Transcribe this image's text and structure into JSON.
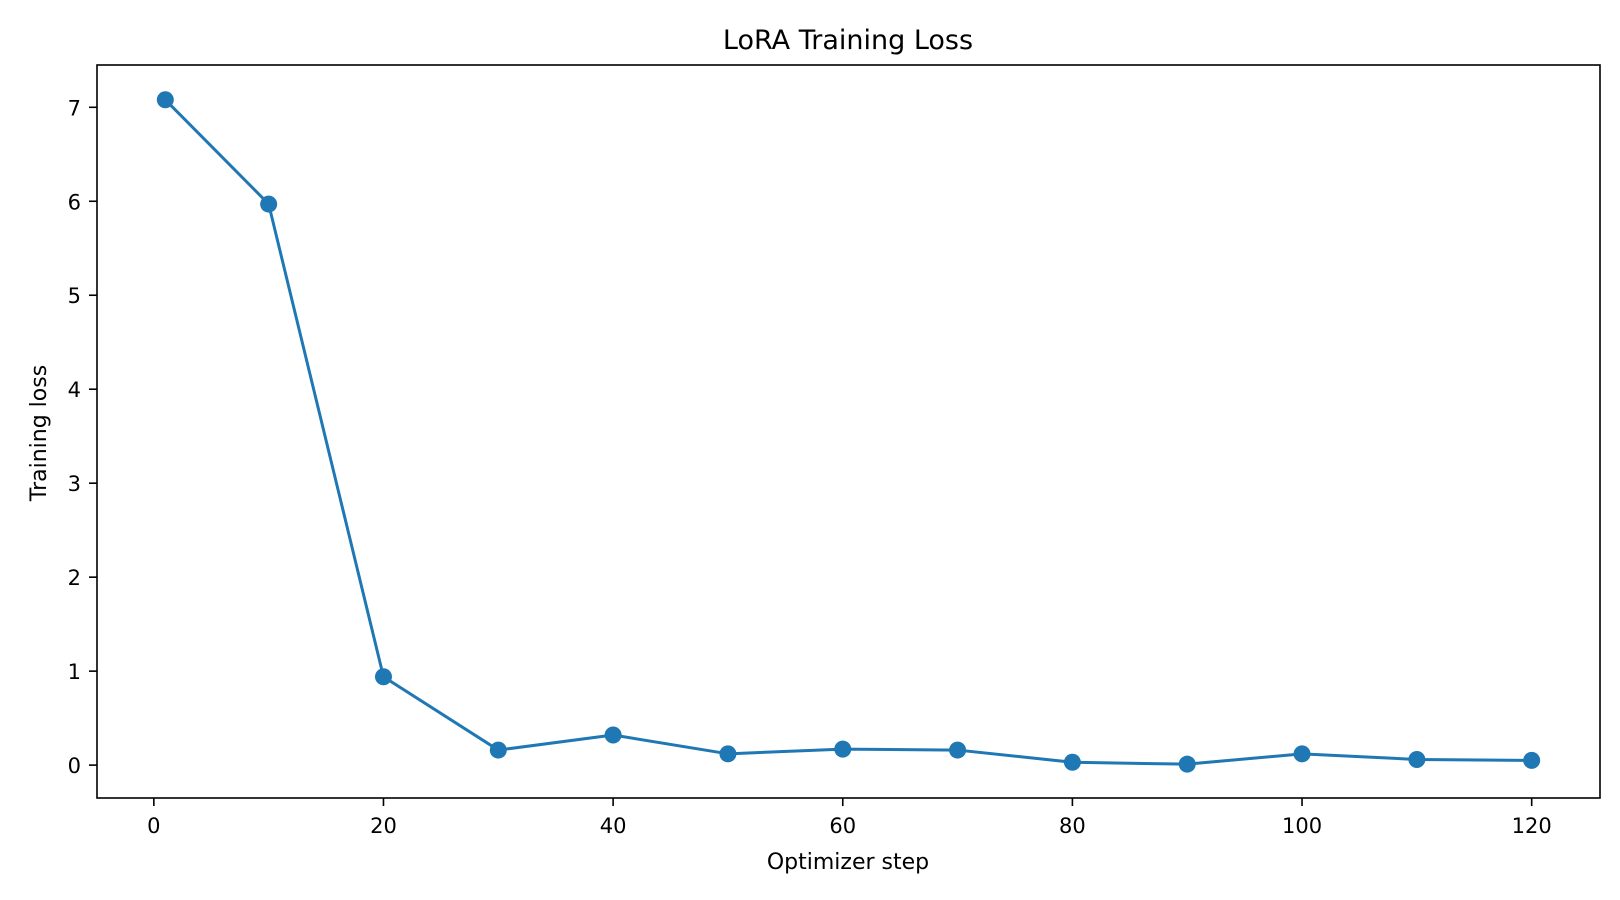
{
  "chart_data": {
    "type": "line",
    "title": "LoRA Training Loss",
    "xlabel": "Optimizer step",
    "ylabel": "Training loss",
    "xlim": [
      -4.95,
      125.95
    ],
    "ylim": [
      -0.35,
      7.45
    ],
    "xticks": [
      0,
      20,
      40,
      60,
      80,
      100,
      120
    ],
    "yticks": [
      0,
      1,
      2,
      3,
      4,
      5,
      6,
      7
    ],
    "grid": false,
    "legend": "none",
    "series": [
      {
        "color": "#1f77b4",
        "marker": "circle",
        "x": [
          1,
          10,
          20,
          30,
          40,
          50,
          60,
          70,
          80,
          90,
          100,
          110,
          120
        ],
        "y": [
          7.08,
          5.97,
          0.94,
          0.16,
          0.32,
          0.12,
          0.17,
          0.16,
          0.03,
          0.01,
          0.12,
          0.06,
          0.05
        ]
      }
    ]
  }
}
